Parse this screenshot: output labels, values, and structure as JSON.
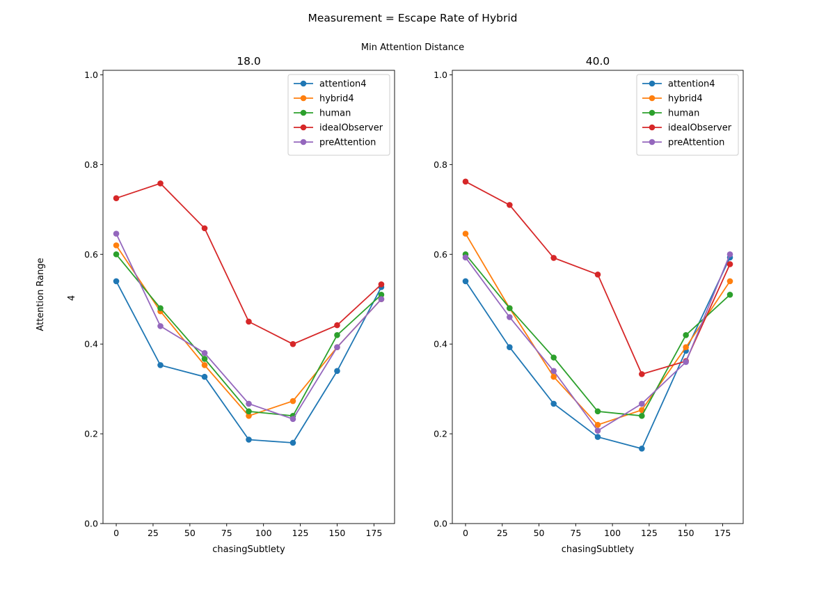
{
  "figure": {
    "suptitle": "Measurement = Escape Rate of Hybrid",
    "column_header": "Min Attention Distance",
    "row_header": "Attention Range",
    "row_value": "4"
  },
  "colors": {
    "attention4": "#1f77b4",
    "hybrid4": "#ff7f0e",
    "human": "#2ca02c",
    "idealObserver": "#d62728",
    "preAttention": "#9467bd"
  },
  "chart_data": [
    {
      "type": "line",
      "title": "18.0",
      "xlabel": "chasingSubtlety",
      "ylabel": "",
      "xlim": [
        -9,
        189
      ],
      "ylim": [
        0,
        1.01
      ],
      "xticks": [
        0,
        25,
        50,
        75,
        100,
        125,
        150,
        175
      ],
      "yticks": [
        0.0,
        0.2,
        0.4,
        0.6,
        0.8,
        1.0
      ],
      "legend_position": "top-right",
      "x": [
        0,
        30,
        60,
        90,
        120,
        150,
        180
      ],
      "series": [
        {
          "name": "attention4",
          "values": [
            0.54,
            0.353,
            0.327,
            0.187,
            0.18,
            0.34,
            0.527
          ]
        },
        {
          "name": "hybrid4",
          "values": [
            0.62,
            0.473,
            0.353,
            0.24,
            0.273,
            0.393,
            0.5
          ]
        },
        {
          "name": "human",
          "values": [
            0.6,
            0.48,
            0.367,
            0.25,
            0.24,
            0.42,
            0.51
          ]
        },
        {
          "name": "idealObserver",
          "values": [
            0.725,
            0.758,
            0.658,
            0.45,
            0.4,
            0.442,
            0.533
          ]
        },
        {
          "name": "preAttention",
          "values": [
            0.646,
            0.44,
            0.38,
            0.267,
            0.233,
            0.393,
            0.5
          ]
        }
      ]
    },
    {
      "type": "line",
      "title": "40.0",
      "xlabel": "chasingSubtlety",
      "ylabel": "",
      "xlim": [
        -9,
        189
      ],
      "ylim": [
        0,
        1.01
      ],
      "xticks": [
        0,
        25,
        50,
        75,
        100,
        125,
        150,
        175
      ],
      "yticks": [
        0.0,
        0.2,
        0.4,
        0.6,
        0.8,
        1.0
      ],
      "legend_position": "top-right",
      "x": [
        0,
        30,
        60,
        90,
        120,
        150,
        180
      ],
      "series": [
        {
          "name": "attention4",
          "values": [
            0.54,
            0.393,
            0.267,
            0.193,
            0.167,
            0.385,
            0.593
          ]
        },
        {
          "name": "hybrid4",
          "values": [
            0.646,
            0.48,
            0.327,
            0.22,
            0.253,
            0.393,
            0.54
          ]
        },
        {
          "name": "human",
          "values": [
            0.6,
            0.48,
            0.37,
            0.25,
            0.24,
            0.42,
            0.51
          ]
        },
        {
          "name": "idealObserver",
          "values": [
            0.762,
            0.71,
            0.592,
            0.555,
            0.333,
            0.362,
            0.578
          ]
        },
        {
          "name": "preAttention",
          "values": [
            0.593,
            0.46,
            0.34,
            0.207,
            0.267,
            0.36,
            0.6
          ]
        }
      ]
    }
  ]
}
